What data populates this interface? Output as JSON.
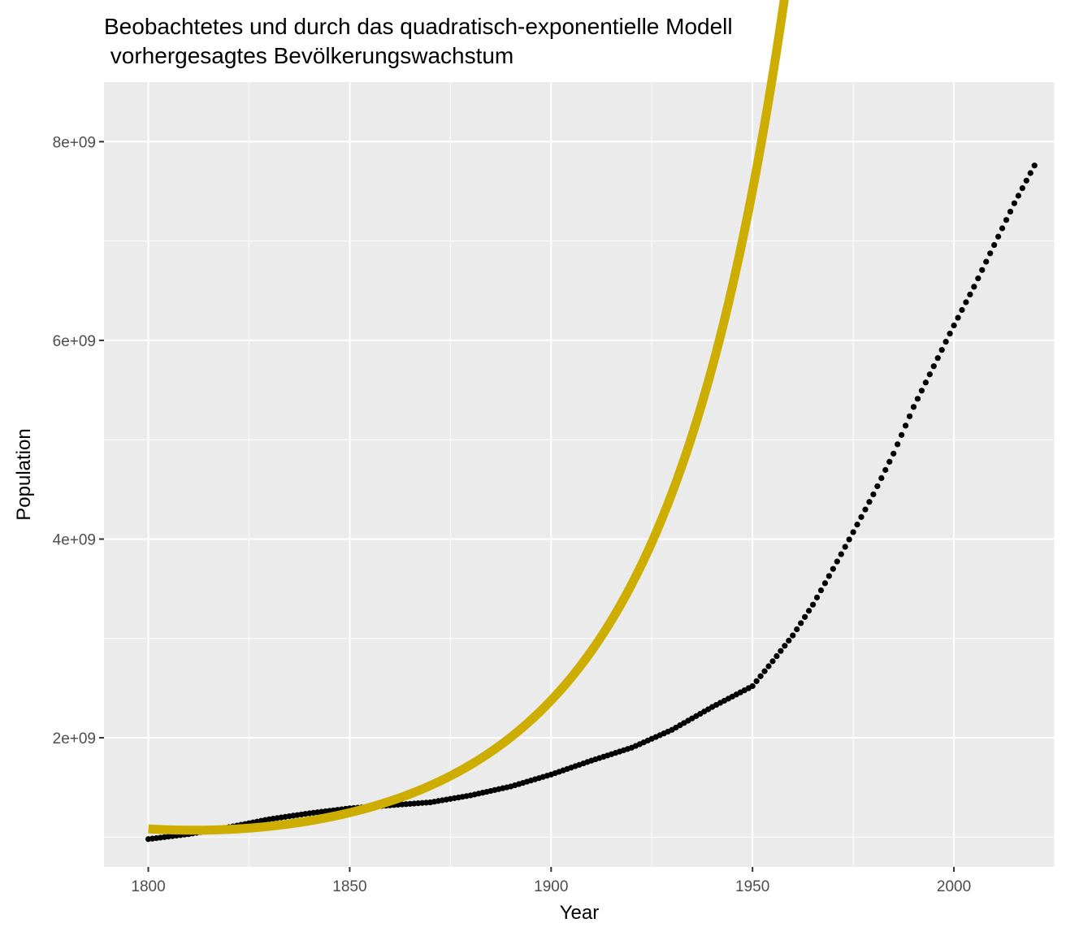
{
  "chart_data": {
    "type": "line",
    "title": "Beobachtetes und durch das quadratisch-exponentielle Modell",
    "subtitle": " vorhergesagtes Bevölkerungswachstum",
    "xlabel": "Year",
    "ylabel": "Population",
    "xlim": [
      1789,
      2025
    ],
    "ylim": [
      700000000,
      8600000000
    ],
    "x_ticks": [
      1800,
      1850,
      1900,
      1950,
      2000
    ],
    "x_tick_labels": [
      "1800",
      "1850",
      "1900",
      "1950",
      "2000"
    ],
    "y_ticks": [
      2000000000,
      4000000000,
      6000000000,
      8000000000
    ],
    "y_tick_labels": [
      "2e+09",
      "4e+09",
      "6e+09",
      "8e+09"
    ],
    "grid": true,
    "legend": "none",
    "colors": {
      "panel": "#ebebeb",
      "grid": "#ffffff",
      "observed": "#000000",
      "model": "#ccad00"
    },
    "series": [
      {
        "kind": "scatter",
        "x_start": 1800,
        "x_end": 2020,
        "x_step": 1,
        "anchors_x": [
          1800,
          1810,
          1820,
          1830,
          1840,
          1850,
          1860,
          1870,
          1880,
          1890,
          1900,
          1910,
          1920,
          1930,
          1940,
          1950,
          1955,
          1960,
          1965,
          1970,
          1975,
          1980,
          1985,
          1990,
          1995,
          2000,
          2005,
          2010,
          2015,
          2020
        ],
        "anchors_y": [
          980000000,
          1030000000,
          1100000000,
          1180000000,
          1240000000,
          1290000000,
          1320000000,
          1350000000,
          1420000000,
          1510000000,
          1630000000,
          1770000000,
          1900000000,
          2080000000,
          2310000000,
          2520000000,
          2770000000,
          3030000000,
          3340000000,
          3700000000,
          4070000000,
          4450000000,
          4860000000,
          5330000000,
          5740000000,
          6150000000,
          6540000000,
          6960000000,
          7380000000,
          7760000000
        ]
      },
      {
        "kind": "line",
        "x_start": 1800,
        "x_end": 2020,
        "x_step": 1,
        "model": {
          "baseline": 1083000000,
          "coef_linear": -0.00224,
          "coef_quadratic": 0.000101
        }
      }
    ]
  }
}
